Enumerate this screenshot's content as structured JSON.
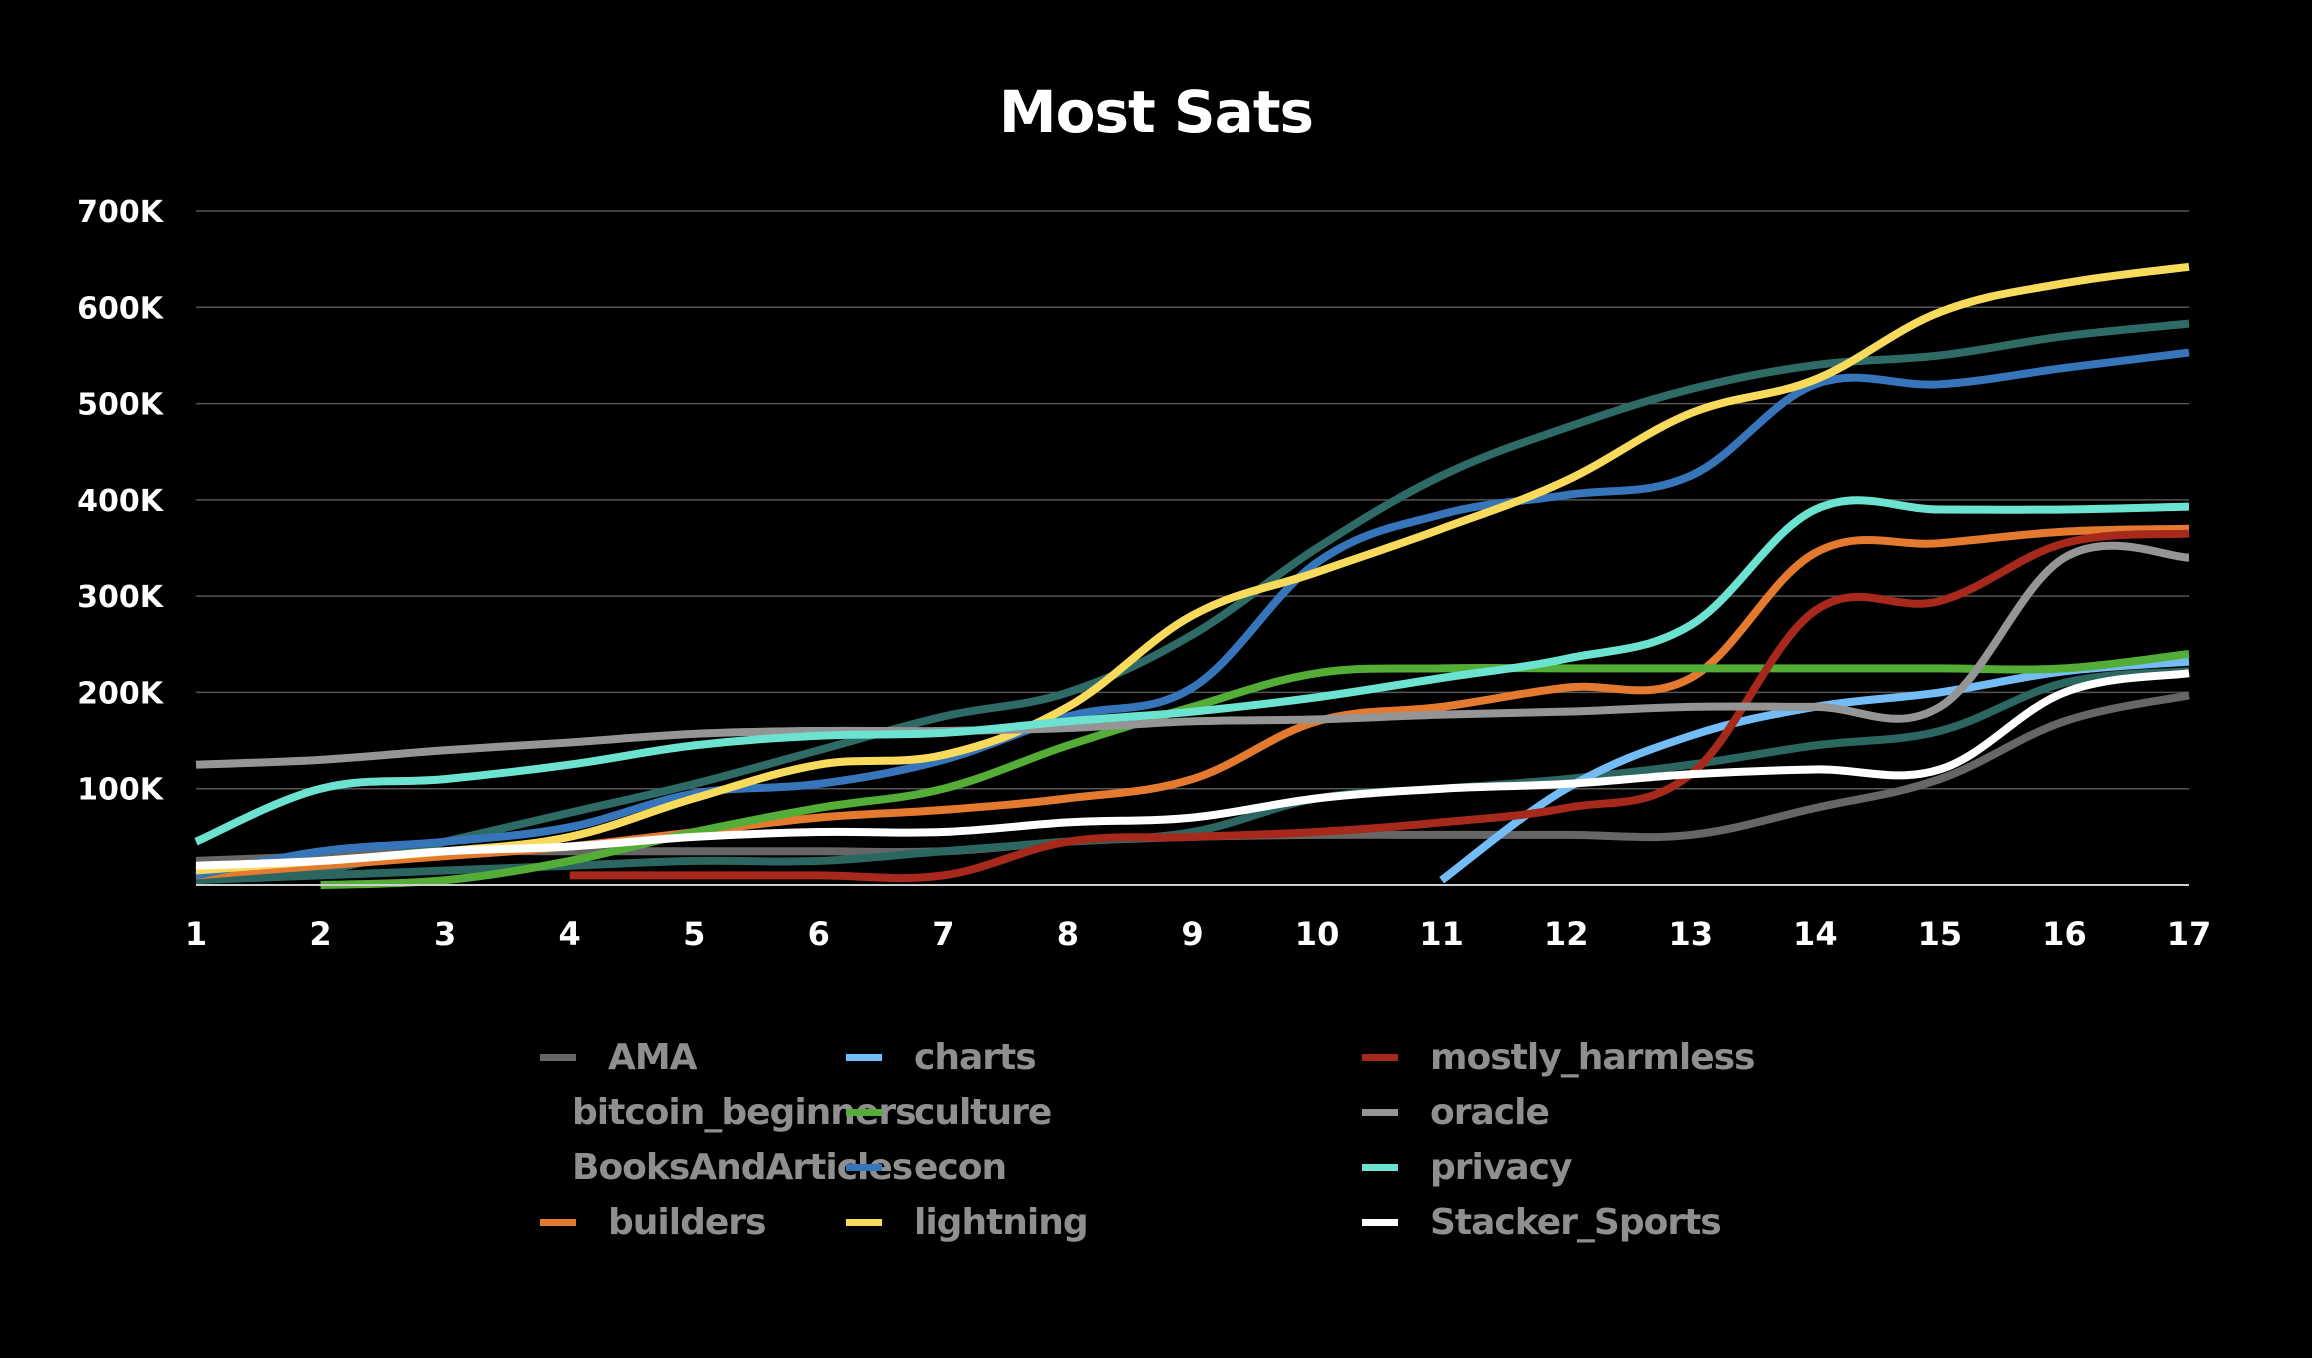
{
  "chart_data": {
    "type": "line",
    "title": "Most Sats",
    "xlabel": "",
    "ylabel": "",
    "x": [
      1,
      2,
      3,
      4,
      5,
      6,
      7,
      8,
      9,
      10,
      11,
      12,
      13,
      14,
      15,
      16,
      17
    ],
    "ylim": [
      0,
      700000
    ],
    "yticks": [
      100000,
      200000,
      300000,
      400000,
      500000,
      600000,
      700000
    ],
    "ytick_labels": [
      "100K",
      "200K",
      "300K",
      "400K",
      "500K",
      "600K",
      "700K"
    ],
    "xtick_labels": [
      "1",
      "2",
      "3",
      "4",
      "5",
      "6",
      "7",
      "8",
      "9",
      "10",
      "11",
      "12",
      "13",
      "14",
      "15",
      "16",
      "17"
    ],
    "grid": true,
    "legend_position": "bottom",
    "series": [
      {
        "name": "AMA",
        "color": "#666666",
        "values": [
          25000,
          30000,
          35000,
          35000,
          35000,
          35000,
          35000,
          45000,
          50000,
          52000,
          52000,
          52000,
          52000,
          80000,
          110000,
          170000,
          197000
        ]
      },
      {
        "name": "bitcoin_beginners",
        "color": "#2e6b66",
        "values": [
          5000,
          15000,
          45000,
          75000,
          105000,
          140000,
          175000,
          200000,
          260000,
          350000,
          425000,
          475000,
          515000,
          540000,
          550000,
          570000,
          583000
        ]
      },
      {
        "name": "BooksAndArticles",
        "color": "#2b6660",
        "values": [
          5000,
          10000,
          15000,
          20000,
          25000,
          25000,
          35000,
          45000,
          55000,
          90000,
          100000,
          110000,
          125000,
          145000,
          160000,
          210000,
          222000
        ]
      },
      {
        "name": "builders",
        "color": "#e37a2f",
        "values": [
          10000,
          20000,
          30000,
          40000,
          55000,
          70000,
          78000,
          90000,
          110000,
          170000,
          185000,
          205000,
          215000,
          345000,
          355000,
          367000,
          370000
        ]
      },
      {
        "name": "charts",
        "color": "#74bcf5",
        "values": [
          null,
          null,
          null,
          null,
          null,
          null,
          null,
          null,
          null,
          null,
          5000,
          100000,
          155000,
          185000,
          200000,
          222000,
          232000
        ]
      },
      {
        "name": "culture",
        "color": "#53ad37",
        "values": [
          null,
          0,
          5000,
          25000,
          55000,
          80000,
          100000,
          145000,
          185000,
          220000,
          225000,
          225000,
          225000,
          225000,
          225000,
          225000,
          240000
        ]
      },
      {
        "name": "econ",
        "color": "#3675ba",
        "values": [
          10000,
          35000,
          45000,
          60000,
          95000,
          105000,
          130000,
          175000,
          205000,
          335000,
          385000,
          405000,
          425000,
          520000,
          520000,
          537000,
          553000
        ]
      },
      {
        "name": "lightning",
        "color": "#f8db5c",
        "values": [
          15000,
          25000,
          35000,
          50000,
          90000,
          125000,
          135000,
          185000,
          280000,
          325000,
          370000,
          420000,
          490000,
          525000,
          595000,
          625000,
          642000
        ]
      },
      {
        "name": "mostly_harmless",
        "color": "#a6291c",
        "values": [
          null,
          null,
          null,
          10000,
          10000,
          10000,
          10000,
          45000,
          50000,
          55000,
          65000,
          80000,
          115000,
          285000,
          295000,
          355000,
          365000
        ]
      },
      {
        "name": "oracle",
        "color": "#959595",
        "values": [
          125000,
          130000,
          140000,
          148000,
          157000,
          160000,
          160000,
          163000,
          170000,
          172000,
          177000,
          180000,
          185000,
          185000,
          185000,
          340000,
          340000
        ]
      },
      {
        "name": "privacy",
        "color": "#6ce3d0",
        "values": [
          45000,
          100000,
          110000,
          125000,
          145000,
          155000,
          158000,
          170000,
          180000,
          195000,
          215000,
          235000,
          270000,
          390000,
          390000,
          390000,
          393000
        ]
      },
      {
        "name": "Stacker_Sports",
        "color": "#ffffff",
        "values": [
          20000,
          25000,
          35000,
          40000,
          50000,
          55000,
          55000,
          65000,
          70000,
          90000,
          100000,
          105000,
          115000,
          120000,
          120000,
          200000,
          220000
        ]
      }
    ]
  }
}
